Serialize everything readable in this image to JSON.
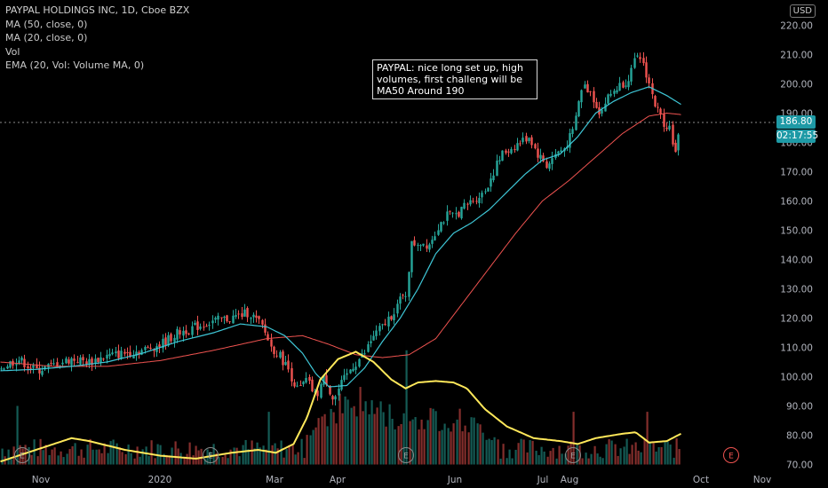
{
  "legend": {
    "title": "PAYPAL HOLDINGS INC, 1D, Cboe BZX",
    "indicators": [
      "MA (50, close, 0)",
      "MA (20, close, 0)",
      "Vol",
      "EMA (20, Vol: Volume MA, 0)"
    ]
  },
  "currency": "USD",
  "annotation": "PAYPAL: nice long set up, high volumes, first challeng will be MA50 Around 190",
  "last_price": "186.80",
  "countdown": "02:17:55",
  "colors": {
    "up": "#26a69a",
    "down": "#ef5350",
    "ma50": "#ef5350",
    "ma20": "#3ec6d6",
    "vol_ma": "#ffe85a",
    "axis_text": "#b2b5be",
    "earnings": "#ef5350"
  },
  "chart_data": {
    "type": "candlestick",
    "ylim": [
      70,
      220
    ],
    "y_ticks": [
      70,
      80,
      90,
      100,
      110,
      120,
      130,
      140,
      150,
      160,
      170,
      180,
      190,
      200,
      210,
      220
    ],
    "x_labels": [
      "Nov",
      "2020",
      "Mar",
      "Apr",
      "Jun",
      "Jul",
      "Aug",
      "Oct",
      "Nov"
    ],
    "earnings_markers": [
      "E",
      "E",
      "E",
      "E",
      "E"
    ],
    "last_price": 186.8,
    "price_path": [
      [
        0,
        103
      ],
      [
        20,
        106
      ],
      [
        40,
        102
      ],
      [
        60,
        104
      ],
      [
        80,
        106
      ],
      [
        100,
        105
      ],
      [
        120,
        107
      ],
      [
        140,
        108
      ],
      [
        160,
        109
      ],
      [
        180,
        111
      ],
      [
        200,
        115
      ],
      [
        220,
        117
      ],
      [
        240,
        119
      ],
      [
        260,
        120
      ],
      [
        280,
        122
      ],
      [
        295,
        117
      ],
      [
        305,
        110
      ],
      [
        315,
        107
      ],
      [
        325,
        102
      ],
      [
        335,
        95
      ],
      [
        345,
        99
      ],
      [
        355,
        93
      ],
      [
        365,
        100
      ],
      [
        375,
        92
      ],
      [
        385,
        98
      ],
      [
        395,
        103
      ],
      [
        410,
        108
      ],
      [
        420,
        114
      ],
      [
        430,
        117
      ],
      [
        440,
        121
      ],
      [
        450,
        126
      ],
      [
        458,
        129
      ],
      [
        462,
        145
      ],
      [
        472,
        146
      ],
      [
        482,
        145
      ],
      [
        492,
        151
      ],
      [
        502,
        155
      ],
      [
        512,
        155
      ],
      [
        522,
        158
      ],
      [
        535,
        161
      ],
      [
        545,
        163
      ],
      [
        555,
        170
      ],
      [
        565,
        176
      ],
      [
        575,
        178
      ],
      [
        585,
        180
      ],
      [
        595,
        182
      ],
      [
        605,
        176
      ],
      [
        615,
        172
      ],
      [
        625,
        176
      ],
      [
        635,
        178
      ],
      [
        645,
        184
      ],
      [
        655,
        200
      ],
      [
        665,
        197
      ],
      [
        675,
        190
      ],
      [
        685,
        196
      ],
      [
        695,
        199
      ],
      [
        705,
        201
      ],
      [
        715,
        208
      ],
      [
        722,
        209
      ],
      [
        730,
        200
      ],
      [
        738,
        192
      ],
      [
        746,
        187
      ],
      [
        754,
        185
      ],
      [
        760,
        176
      ],
      [
        766,
        186.8
      ]
    ],
    "ma20": [
      [
        0,
        102
      ],
      [
        40,
        102.5
      ],
      [
        80,
        103.5
      ],
      [
        120,
        105
      ],
      [
        160,
        108
      ],
      [
        200,
        112
      ],
      [
        240,
        115
      ],
      [
        270,
        118
      ],
      [
        300,
        117
      ],
      [
        320,
        114
      ],
      [
        340,
        108
      ],
      [
        355,
        101
      ],
      [
        370,
        96.5
      ],
      [
        390,
        97
      ],
      [
        410,
        103
      ],
      [
        430,
        112
      ],
      [
        450,
        120
      ],
      [
        470,
        130
      ],
      [
        490,
        142
      ],
      [
        510,
        149
      ],
      [
        530,
        152.5
      ],
      [
        550,
        157
      ],
      [
        570,
        163
      ],
      [
        590,
        169
      ],
      [
        610,
        174
      ],
      [
        630,
        176
      ],
      [
        650,
        182
      ],
      [
        670,
        190
      ],
      [
        690,
        194
      ],
      [
        710,
        197
      ],
      [
        730,
        199
      ],
      [
        750,
        196
      ],
      [
        766,
        193
      ]
    ],
    "ma50": [
      [
        0,
        105
      ],
      [
        60,
        103.5
      ],
      [
        120,
        103.5
      ],
      [
        180,
        105.5
      ],
      [
        240,
        109
      ],
      [
        300,
        113
      ],
      [
        340,
        114
      ],
      [
        370,
        111
      ],
      [
        400,
        107.5
      ],
      [
        430,
        106.5
      ],
      [
        460,
        107.5
      ],
      [
        490,
        113
      ],
      [
        520,
        125
      ],
      [
        550,
        137
      ],
      [
        580,
        149
      ],
      [
        610,
        160
      ],
      [
        640,
        167
      ],
      [
        670,
        175
      ],
      [
        700,
        183
      ],
      [
        730,
        189
      ],
      [
        750,
        190
      ],
      [
        766,
        189.5
      ]
    ],
    "volume_ma": [
      [
        0,
        71
      ],
      [
        40,
        75
      ],
      [
        80,
        79
      ],
      [
        100,
        78
      ],
      [
        140,
        75
      ],
      [
        180,
        73
      ],
      [
        220,
        72
      ],
      [
        260,
        74
      ],
      [
        290,
        75
      ],
      [
        310,
        74
      ],
      [
        330,
        77
      ],
      [
        345,
        86
      ],
      [
        360,
        99
      ],
      [
        380,
        106
      ],
      [
        400,
        108.5
      ],
      [
        420,
        105
      ],
      [
        440,
        99
      ],
      [
        456,
        96
      ],
      [
        470,
        98
      ],
      [
        490,
        98.5
      ],
      [
        510,
        98
      ],
      [
        525,
        96
      ],
      [
        545,
        89
      ],
      [
        570,
        83
      ],
      [
        600,
        79
      ],
      [
        630,
        78
      ],
      [
        650,
        77
      ],
      [
        670,
        79
      ],
      [
        700,
        80.5
      ],
      [
        715,
        81
      ],
      [
        730,
        77.5
      ],
      [
        750,
        78
      ],
      [
        766,
        80.5
      ]
    ],
    "volume_spikes": [
      [
        18,
        90
      ],
      [
        302,
        88
      ],
      [
        457,
        109
      ],
      [
        644,
        88
      ],
      [
        727,
        88
      ]
    ]
  }
}
